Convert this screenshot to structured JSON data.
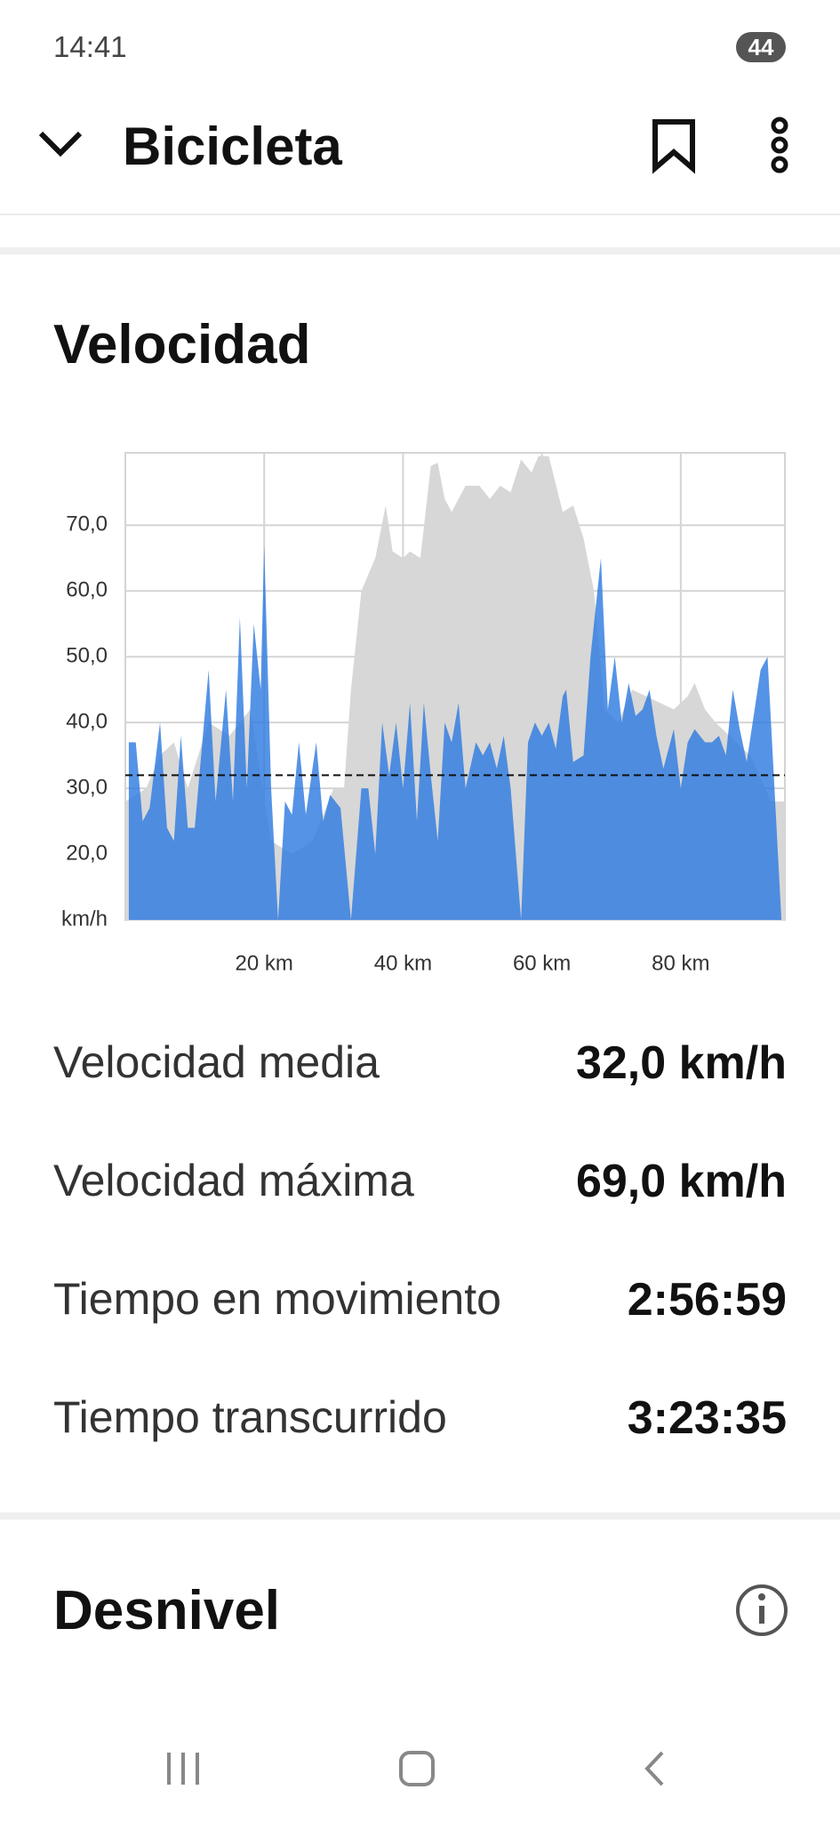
{
  "status_bar": {
    "time": "14:41",
    "battery": "44"
  },
  "header": {
    "title": "Bicicleta"
  },
  "section": {
    "title": "Velocidad"
  },
  "chart_data": {
    "type": "area",
    "xlim": [
      0,
      95
    ],
    "ylim": [
      10,
      81
    ],
    "xticks": [
      {
        "value": 20,
        "label": "20 km"
      },
      {
        "value": 40,
        "label": "40 km"
      },
      {
        "value": 60,
        "label": "60 km"
      },
      {
        "value": 80,
        "label": "80 km"
      }
    ],
    "yticks": [
      {
        "value": 20,
        "label": "20,0"
      },
      {
        "value": 30,
        "label": "30,0"
      },
      {
        "value": 40,
        "label": "40,0"
      },
      {
        "value": 50,
        "label": "50,0"
      },
      {
        "value": 60,
        "label": "60,0"
      },
      {
        "value": 70,
        "label": "70,0"
      }
    ],
    "y_unit_label": "km/h",
    "grid": true,
    "average": 32,
    "series": [
      {
        "color": "#d7d7d7",
        "x": [
          0,
          3,
          5,
          7,
          9,
          12,
          15,
          18,
          21,
          24,
          27,
          30,
          31.5,
          32.5,
          34,
          36,
          37.5,
          38.5,
          40,
          41,
          42.5,
          44,
          45,
          46,
          47,
          49,
          51,
          52.5,
          54,
          55.5,
          57,
          58.5,
          59.5,
          61,
          63,
          64.5,
          66,
          67.5,
          69,
          71,
          73,
          75,
          77,
          79,
          81,
          82,
          83.5,
          85,
          87,
          90,
          93,
          95
        ],
        "values": [
          28,
          30,
          35,
          37,
          30,
          40,
          38,
          42,
          22,
          20,
          22,
          30,
          30,
          45,
          60,
          65,
          73,
          66,
          65,
          66,
          65,
          79,
          79.5,
          74,
          72,
          76,
          76,
          74,
          76,
          75,
          80,
          78,
          80.5,
          80.5,
          72,
          73,
          68,
          60,
          42,
          40,
          45,
          44,
          43,
          42,
          44,
          46,
          42,
          40,
          38,
          35,
          28,
          28
        ]
      },
      {
        "color": "#2f7be0",
        "x": [
          0.5,
          1.5,
          2.5,
          3.5,
          5,
          6,
          7,
          8,
          9,
          10,
          12,
          13,
          14.5,
          15.5,
          16.5,
          17.5,
          18.5,
          19.5,
          20,
          21,
          22,
          23,
          24,
          25,
          26,
          27.5,
          28.5,
          29.5,
          31,
          32.5,
          34,
          35,
          36,
          37,
          38,
          39,
          40,
          41,
          42,
          43,
          44,
          45,
          46,
          47,
          48,
          49,
          50.5,
          51.5,
          52.5,
          53.5,
          54.5,
          55.5,
          57,
          58,
          59,
          60,
          61,
          62,
          63,
          63.5,
          64.5,
          66,
          67,
          68.5,
          69.5,
          70.5,
          71.5,
          72.5,
          73.5,
          74.5,
          75.5,
          76.5,
          77.5,
          79,
          80,
          81,
          82,
          83.5,
          84.5,
          85.5,
          86.5,
          87.5,
          88.5,
          89.5,
          91.5,
          92.5,
          94.5
        ],
        "values": [
          37,
          37,
          25,
          27,
          40,
          24,
          22,
          38,
          24,
          24,
          48,
          28,
          45,
          28,
          56,
          30,
          55,
          45,
          67,
          30,
          10,
          28,
          26,
          37,
          26,
          37,
          25,
          29,
          27,
          10,
          30,
          30,
          20,
          40,
          32,
          40,
          30,
          43,
          25,
          43,
          32,
          22,
          40,
          37,
          43,
          30,
          37,
          35,
          37,
          33,
          38,
          30,
          10,
          37,
          40,
          38,
          40,
          36,
          44,
          45,
          34,
          35,
          50,
          65,
          42,
          50,
          40,
          46,
          41,
          42,
          45,
          38,
          33,
          39,
          30,
          37,
          39,
          37,
          37,
          38,
          35,
          45,
          39,
          34,
          48,
          50,
          10
        ]
      }
    ]
  },
  "stats": [
    {
      "label": "Velocidad media",
      "value": "32,0 km/h"
    },
    {
      "label": "Velocidad máxima",
      "value": "69,0 km/h"
    },
    {
      "label": "Tiempo en movimiento",
      "value": "2:56:59"
    },
    {
      "label": "Tiempo transcurrido",
      "value": "3:23:35"
    }
  ],
  "footer_section": {
    "title": "Desnivel"
  }
}
